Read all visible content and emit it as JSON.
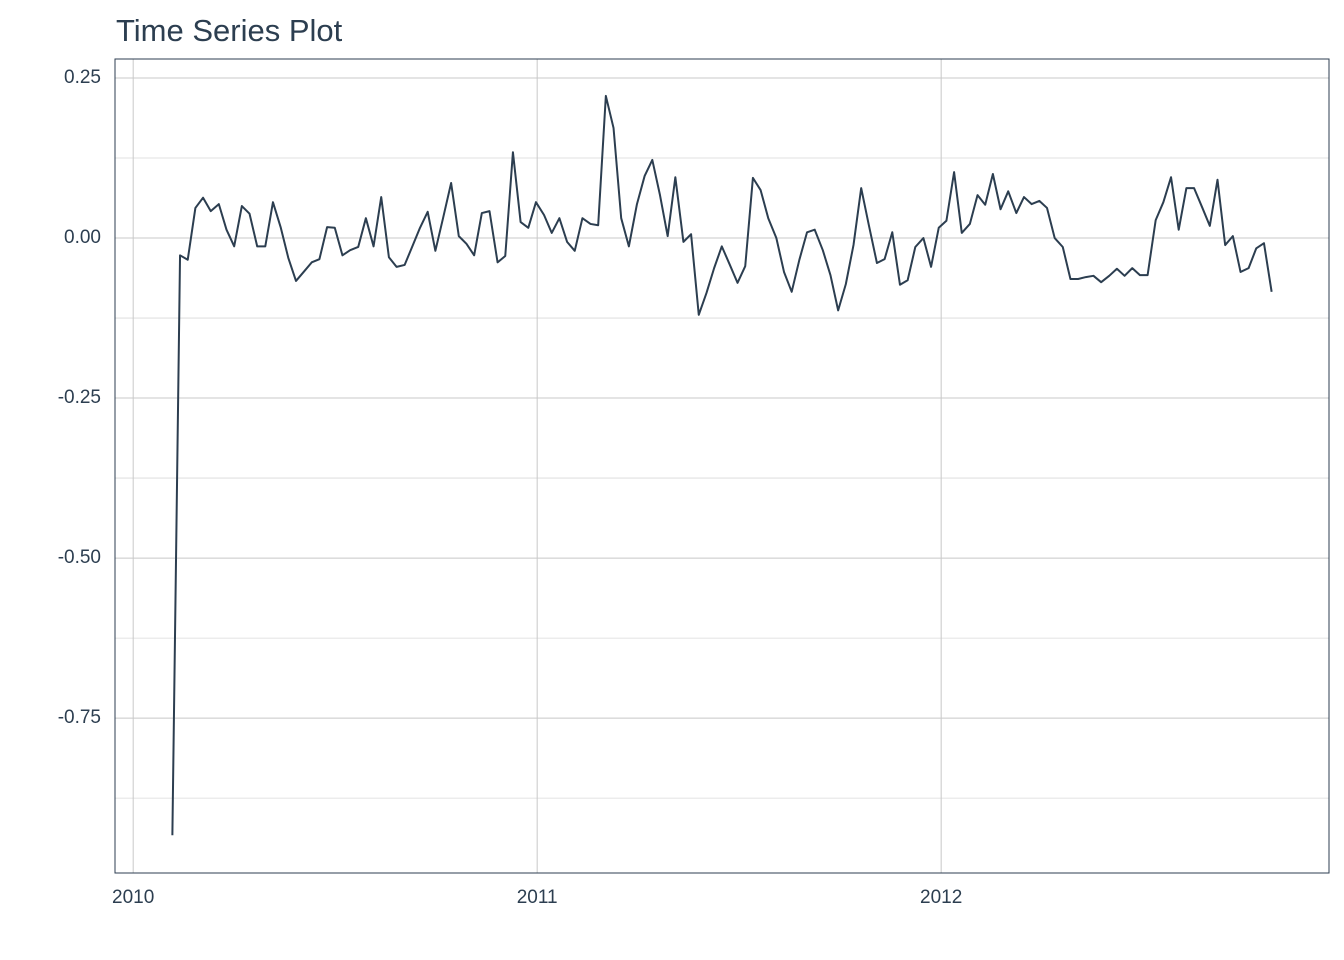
{
  "chart_data": {
    "type": "line",
    "title": "Time Series Plot",
    "color": "#2c3e50",
    "grid": true,
    "x": [
      2010.097,
      2010.116,
      2010.135,
      2010.154,
      2010.173,
      2010.192,
      2010.212,
      2010.231,
      2010.25,
      2010.269,
      2010.288,
      2010.307,
      2010.327,
      2010.346,
      2010.365,
      2010.384,
      2010.403,
      2010.422,
      2010.442,
      2010.461,
      2010.48,
      2010.499,
      2010.518,
      2010.537,
      2010.557,
      2010.576,
      2010.595,
      2010.614,
      2010.633,
      2010.652,
      2010.672,
      2010.691,
      2010.71,
      2010.729,
      2010.748,
      2010.767,
      2010.787,
      2010.806,
      2010.825,
      2010.844,
      2010.863,
      2010.882,
      2010.902,
      2010.921,
      2010.94,
      2010.959,
      2010.978,
      2010.997,
      2011.017,
      2011.036,
      2011.055,
      2011.074,
      2011.093,
      2011.112,
      2011.132,
      2011.151,
      2011.17,
      2011.189,
      2011.208,
      2011.227,
      2011.247,
      2011.266,
      2011.285,
      2011.304,
      2011.323,
      2011.342,
      2011.362,
      2011.381,
      2011.4,
      2011.419,
      2011.438,
      2011.457,
      2011.477,
      2011.496,
      2011.515,
      2011.534,
      2011.553,
      2011.572,
      2011.592,
      2011.611,
      2011.63,
      2011.649,
      2011.668,
      2011.687,
      2011.707,
      2011.726,
      2011.745,
      2011.764,
      2011.783,
      2011.802,
      2011.821,
      2011.841,
      2011.86,
      2011.879,
      2011.898,
      2011.917,
      2011.936,
      2011.956,
      2011.975,
      2011.994,
      2012.013,
      2012.032,
      2012.051,
      2012.071,
      2012.09,
      2012.109,
      2012.128,
      2012.147,
      2012.166,
      2012.186,
      2012.205,
      2012.224,
      2012.243,
      2012.262,
      2012.281,
      2012.301,
      2012.32,
      2012.339,
      2012.358,
      2012.377,
      2012.396,
      2012.416,
      2012.435,
      2012.454,
      2012.473,
      2012.492,
      2012.511,
      2012.531,
      2012.55,
      2012.569,
      2012.588,
      2012.607,
      2012.626,
      2012.646,
      2012.665,
      2012.684,
      2012.703,
      2012.722,
      2012.741,
      2012.761,
      2012.78,
      2012.799,
      2012.818
    ],
    "values": [
      -0.933,
      -0.027,
      -0.034,
      0.047,
      0.063,
      0.042,
      0.053,
      0.013,
      -0.013,
      0.05,
      0.038,
      -0.013,
      -0.013,
      0.056,
      0.017,
      -0.031,
      -0.067,
      -0.053,
      -0.038,
      -0.033,
      0.017,
      0.016,
      -0.027,
      -0.019,
      -0.014,
      0.031,
      -0.013,
      0.064,
      -0.03,
      -0.045,
      -0.042,
      -0.013,
      0.016,
      0.041,
      -0.02,
      0.031,
      0.086,
      0.003,
      -0.009,
      -0.027,
      0.039,
      0.042,
      -0.038,
      -0.028,
      0.134,
      0.025,
      0.016,
      0.056,
      0.036,
      0.008,
      0.031,
      -0.006,
      -0.02,
      0.031,
      0.022,
      0.02,
      0.222,
      0.172,
      0.031,
      -0.013,
      0.053,
      0.097,
      0.122,
      0.067,
      0.003,
      0.095,
      -0.006,
      0.006,
      -0.12,
      -0.086,
      -0.047,
      -0.013,
      -0.042,
      -0.07,
      -0.044,
      0.094,
      0.075,
      0.031,
      0.0,
      -0.053,
      -0.084,
      -0.034,
      0.009,
      0.013,
      -0.019,
      -0.058,
      -0.113,
      -0.072,
      -0.011,
      0.078,
      0.02,
      -0.039,
      -0.033,
      0.009,
      -0.073,
      -0.066,
      -0.014,
      0.0,
      -0.045,
      0.016,
      0.027,
      0.103,
      0.008,
      0.022,
      0.067,
      0.052,
      0.1,
      0.045,
      0.073,
      0.039,
      0.064,
      0.053,
      0.058,
      0.047,
      0.0,
      -0.014,
      -0.064,
      -0.064,
      -0.061,
      -0.059,
      -0.069,
      -0.059,
      -0.048,
      -0.059,
      -0.047,
      -0.058,
      -0.058,
      0.028,
      0.056,
      0.095,
      0.013,
      0.078,
      0.078,
      0.048,
      0.019,
      0.091,
      -0.011,
      0.003,
      -0.053,
      -0.047,
      -0.016,
      -0.008,
      -0.084
    ],
    "xlim": [
      2009.955,
      2012.96
    ],
    "xticks": [
      2010,
      2011,
      2012
    ],
    "ylim": [
      -0.992,
      0.2797
    ],
    "yticks": [
      {
        "value": -0.75,
        "label": "-0.75"
      },
      {
        "value": -0.5,
        "label": "-0.50"
      },
      -0.25,
      {
        "value": 0,
        "label": "0.00"
      },
      0.25
    ]
  }
}
